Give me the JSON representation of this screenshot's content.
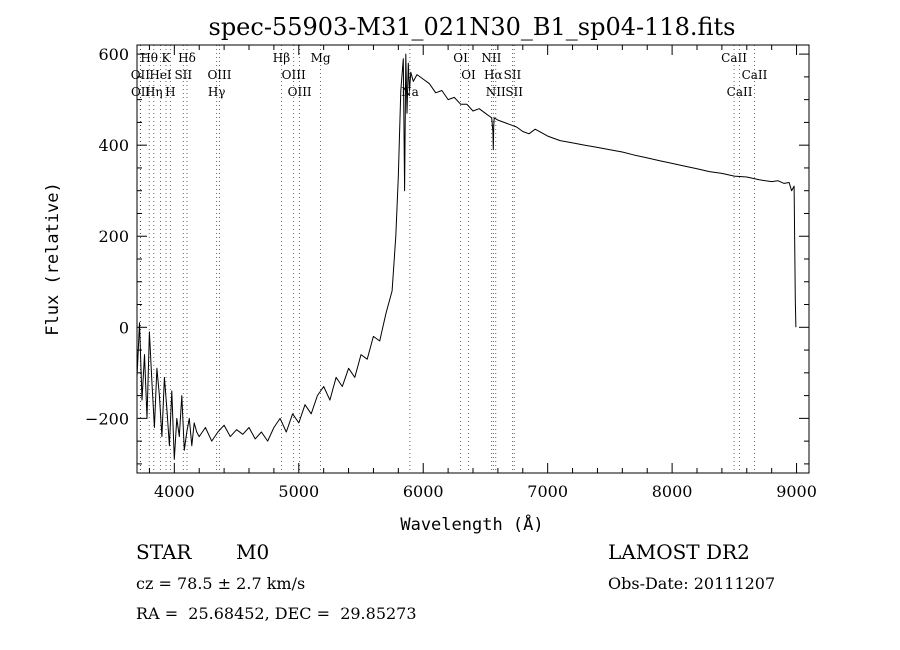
{
  "chart_data": {
    "type": "line",
    "title": "spec-55903-M31_021N30_B1_sp04-118.fits",
    "xlabel": "Wavelength (Å)",
    "ylabel": "Flux (relative)",
    "xlim": [
      3700,
      9100
    ],
    "ylim": [
      -320,
      620
    ],
    "xticks": [
      4000,
      5000,
      6000,
      7000,
      8000,
      9000
    ],
    "yticks": [
      -200,
      0,
      200,
      400,
      600
    ],
    "grid": false,
    "series": [
      {
        "x": [
          3700,
          3720,
          3740,
          3760,
          3780,
          3800,
          3820,
          3840,
          3860,
          3880,
          3900,
          3920,
          3940,
          3960,
          3980,
          4000,
          4020,
          4040,
          4060,
          4080,
          4100,
          4120,
          4140,
          4160,
          4180,
          4200,
          4250,
          4300,
          4350,
          4400,
          4450,
          4500,
          4550,
          4600,
          4650,
          4700,
          4750,
          4800,
          4850,
          4900,
          4950,
          5000,
          5050,
          5100,
          5150,
          5200,
          5250,
          5300,
          5350,
          5400,
          5450,
          5500,
          5550,
          5600,
          5650,
          5700,
          5750,
          5780,
          5800,
          5820,
          5840,
          5850,
          5860,
          5870,
          5880,
          5890,
          5900,
          5920,
          5950,
          6000,
          6050,
          6100,
          6150,
          6200,
          6250,
          6300,
          6350,
          6400,
          6450,
          6500,
          6550,
          6560,
          6563,
          6566,
          6570,
          6600,
          6650,
          6700,
          6750,
          6800,
          6850,
          6900,
          7000,
          7100,
          7200,
          7300,
          7400,
          7500,
          7600,
          7700,
          7800,
          7900,
          8000,
          8100,
          8200,
          8300,
          8400,
          8500,
          8600,
          8700,
          8800,
          8850,
          8900,
          8940,
          8960,
          8980,
          8990,
          8995
        ],
        "y": [
          -110,
          10,
          -160,
          -60,
          -200,
          -10,
          -120,
          -220,
          -90,
          -150,
          -240,
          -110,
          -180,
          -260,
          -140,
          -290,
          -200,
          -240,
          -150,
          -270,
          -230,
          -200,
          -260,
          -210,
          -230,
          -240,
          -220,
          -250,
          -230,
          -215,
          -240,
          -225,
          -235,
          -220,
          -245,
          -230,
          -250,
          -220,
          -200,
          -230,
          -190,
          -210,
          -170,
          -190,
          -150,
          -130,
          -160,
          -110,
          -130,
          -90,
          -110,
          -60,
          -70,
          -20,
          -30,
          30,
          80,
          200,
          330,
          520,
          590,
          300,
          600,
          470,
          580,
          520,
          560,
          540,
          555,
          545,
          535,
          515,
          520,
          500,
          505,
          490,
          490,
          475,
          480,
          470,
          460,
          430,
          390,
          440,
          460,
          455,
          450,
          445,
          440,
          430,
          425,
          435,
          420,
          410,
          405,
          400,
          395,
          390,
          385,
          378,
          372,
          366,
          360,
          354,
          348,
          342,
          338,
          332,
          330,
          324,
          320,
          322,
          316,
          318,
          300,
          310,
          60,
          0
        ]
      }
    ],
    "lines_top": [
      {
        "label": "Hθ",
        "x": 3798
      },
      {
        "label": "K",
        "x": 3933
      },
      {
        "label": "Hδ",
        "x": 4102
      },
      {
        "label": "Hβ",
        "x": 4861
      },
      {
        "label": "Mg",
        "x": 5175
      },
      {
        "label": "OI",
        "x": 6300
      },
      {
        "label": "NII",
        "x": 6548
      },
      {
        "label": "CaII",
        "x": 8498
      }
    ],
    "lines_mid": [
      {
        "label": "OII",
        "x": 3727
      },
      {
        "label": "HeI",
        "x": 3889
      },
      {
        "label": "SII",
        "x": 4072
      },
      {
        "label": "OIII",
        "x": 4363
      },
      {
        "label": "OIII",
        "x": 4959
      },
      {
        "label": "OI",
        "x": 6364
      },
      {
        "label": "Hα",
        "x": 6563
      },
      {
        "label": "SII",
        "x": 6717
      },
      {
        "label": "CaII",
        "x": 8662
      }
    ],
    "lines_low": [
      {
        "label": "OII",
        "x": 3729
      },
      {
        "label": "Hη",
        "x": 3835
      },
      {
        "label": "H",
        "x": 3968
      },
      {
        "label": "Hγ",
        "x": 4340
      },
      {
        "label": "OIII",
        "x": 5007
      },
      {
        "label": "Na",
        "x": 5893
      },
      {
        "label": "NII",
        "x": 6583
      },
      {
        "label": "SII",
        "x": 6731
      },
      {
        "label": "CaII",
        "x": 8542
      }
    ]
  },
  "info": {
    "object_class": "STAR",
    "subclass": "M0",
    "cz": "cz = 78.5 ± 2.7 km/s",
    "coords": "RA =  25.68452, DEC =  29.85273",
    "survey": "LAMOST DR2",
    "obs_date": "Obs-Date: 20111207"
  }
}
